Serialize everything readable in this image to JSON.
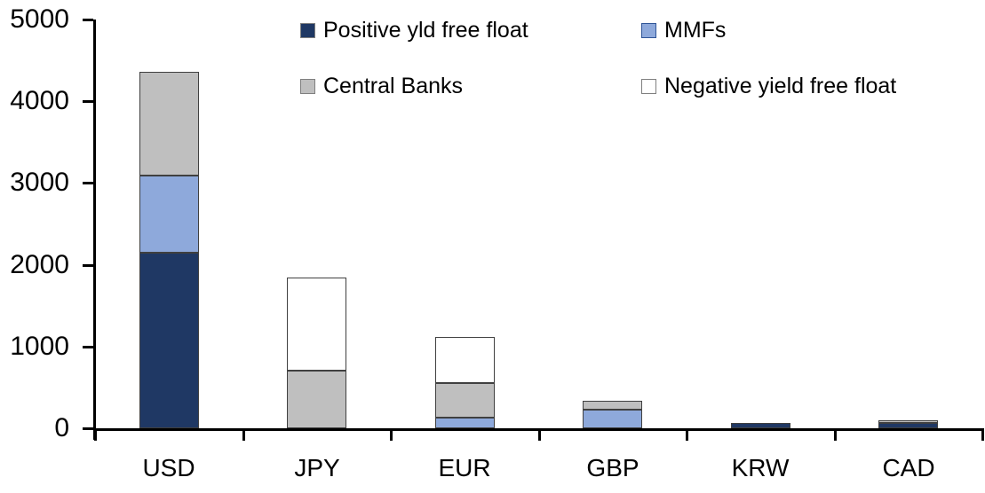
{
  "chart_data": {
    "type": "bar",
    "variant": "stacked",
    "categories": [
      "USD",
      "JPY",
      "EUR",
      "GBP",
      "KRW",
      "CAD"
    ],
    "series": [
      {
        "name": "Positive yld free float",
        "color": "#1F3864",
        "swatch_border": "#7F7F7F",
        "values": [
          2150,
          0,
          0,
          0,
          60,
          60
        ]
      },
      {
        "name": "MMFs",
        "color": "#8EA9DB",
        "swatch_border": "#2F5597",
        "values": [
          940,
          0,
          125,
          230,
          0,
          0
        ]
      },
      {
        "name": "Central Banks",
        "color": "#BFBFBF",
        "swatch_border": "#7F7F7F",
        "values": [
          1270,
          710,
          430,
          110,
          0,
          40
        ]
      },
      {
        "name": "Negative yield free float",
        "color": "#FFFFFF",
        "swatch_border": "#7F7F7F",
        "values": [
          0,
          1130,
          565,
          0,
          0,
          0
        ]
      }
    ],
    "stack_totals": [
      4360,
      1840,
      1120,
      340,
      60,
      100
    ],
    "xlabel": "",
    "ylabel": "",
    "ylim": [
      0,
      5000
    ],
    "yticks": [
      0,
      1000,
      2000,
      3000,
      4000,
      5000
    ],
    "ytick_labels": [
      "0",
      "1000",
      "2000",
      "3000",
      "4000",
      "5000"
    ],
    "grid": false,
    "legend_position": "top",
    "legend_rows": [
      [
        "Positive yld free float",
        "MMFs"
      ],
      [
        "Central Banks",
        "Negative yield free float"
      ]
    ],
    "colors": {
      "axis": "#000000",
      "bar_border": "#404040",
      "text": "#000000",
      "background": "#FFFFFF"
    }
  }
}
